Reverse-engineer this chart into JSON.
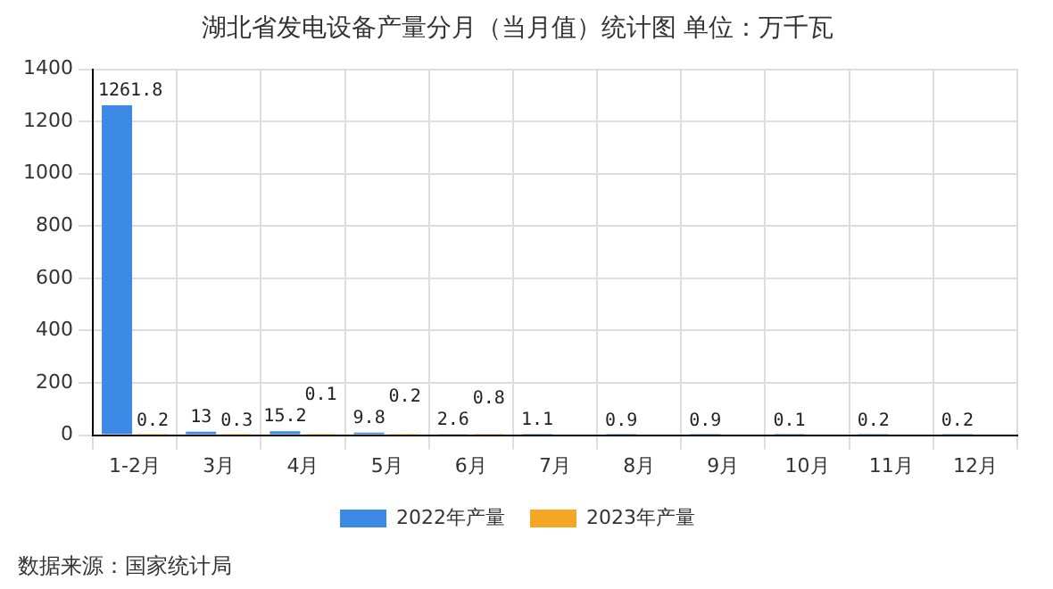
{
  "chart_data": {
    "type": "bar",
    "title": "湖北省发电设备产量分月（当月值）统计图 单位：万千瓦",
    "categories": [
      "1-2月",
      "3月",
      "4月",
      "5月",
      "6月",
      "7月",
      "8月",
      "9月",
      "10月",
      "11月",
      "12月"
    ],
    "series": [
      {
        "name": "2022年产量",
        "color": "#3d8ae6",
        "values": [
          1261.8,
          13,
          15.2,
          9.8,
          2.6,
          1.1,
          0.9,
          0.9,
          0.1,
          0.2,
          0.2
        ]
      },
      {
        "name": "2023年产量",
        "color": "#f5a623",
        "values": [
          0.2,
          0.3,
          0.1,
          0.2,
          0.8,
          null,
          null,
          null,
          null,
          null,
          null
        ]
      }
    ],
    "ylim": [
      0,
      1400
    ],
    "yticks": [
      0,
      200,
      400,
      600,
      800,
      1000,
      1200,
      1400
    ],
    "grid": true,
    "legend": "bottom",
    "data_labels": true,
    "annotations": [
      "数据来源：国家统计局"
    ]
  }
}
